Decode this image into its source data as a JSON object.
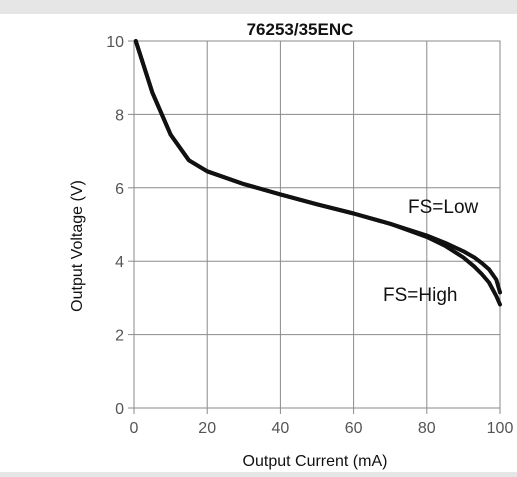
{
  "chart_data": {
    "type": "line",
    "title": "76253/35ENC",
    "xlabel": "Output Current (mA)",
    "ylabel": "Output Voltage (V)",
    "xlim": [
      0,
      100
    ],
    "ylim": [
      0,
      10
    ],
    "x_ticks": [
      "0",
      "20",
      "40",
      "60",
      "80",
      "100"
    ],
    "y_ticks": [
      "0",
      "2",
      "4",
      "6",
      "8",
      "10"
    ],
    "grid": true,
    "series": [
      {
        "name": "FS=Low",
        "x": [
          0.5,
          5,
          10,
          15,
          20,
          30,
          40,
          50,
          60,
          70,
          80,
          85,
          90,
          93,
          95,
          97,
          99,
          100
        ],
        "y": [
          10.0,
          8.6,
          7.45,
          6.75,
          6.45,
          6.1,
          5.82,
          5.55,
          5.3,
          5.02,
          4.7,
          4.5,
          4.27,
          4.1,
          3.95,
          3.78,
          3.5,
          3.15
        ]
      },
      {
        "name": "FS=High",
        "x": [
          0.5,
          5,
          10,
          15,
          20,
          30,
          40,
          50,
          60,
          70,
          80,
          85,
          90,
          93,
          95,
          97,
          99,
          100
        ],
        "y": [
          10.0,
          8.6,
          7.45,
          6.75,
          6.45,
          6.1,
          5.82,
          5.55,
          5.3,
          5.02,
          4.66,
          4.42,
          4.1,
          3.85,
          3.65,
          3.42,
          3.05,
          2.82
        ]
      }
    ],
    "line_color": "#111111",
    "grid_color": "#8a8a8a",
    "plot_background": "#ffffff",
    "page_background": "#e6e6e6"
  }
}
